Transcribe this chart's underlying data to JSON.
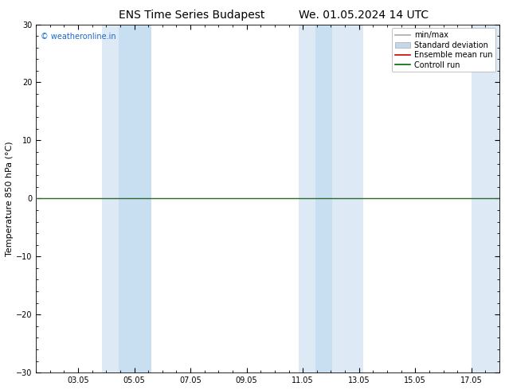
{
  "title_left": "ENS Time Series Budapest",
  "title_right": "We. 01.05.2024 14 UTC",
  "ylabel": "Temperature 850 hPa (°C)",
  "watermark": "© weatheronline.in",
  "watermark_color": "#1a6acc",
  "ylim": [
    -30,
    30
  ],
  "yticks": [
    -30,
    -20,
    -10,
    0,
    10,
    20,
    30
  ],
  "xtick_labels": [
    "03.05",
    "05.05",
    "07.05",
    "09.05",
    "11.05",
    "13.05",
    "15.05",
    "17.05"
  ],
  "xtick_positions": [
    3,
    5,
    7,
    9,
    11,
    13,
    15,
    17
  ],
  "xlim": [
    1.5,
    18.0
  ],
  "shaded_bands": [
    {
      "x_start": 3.85,
      "x_end": 4.45,
      "color": "#ddeaf6"
    },
    {
      "x_start": 4.45,
      "x_end": 5.6,
      "color": "#c8dff2"
    },
    {
      "x_start": 10.85,
      "x_end": 11.45,
      "color": "#ddeaf6"
    },
    {
      "x_start": 11.45,
      "x_end": 12.05,
      "color": "#c8dff2"
    },
    {
      "x_start": 12.05,
      "x_end": 13.15,
      "color": "#ddeaf6"
    },
    {
      "x_start": 17.0,
      "x_end": 18.0,
      "color": "#ddeaf6"
    }
  ],
  "zero_line_color": "#2d6a2d",
  "background_color": "#ffffff",
  "plot_bg_color": "#ffffff",
  "legend_items": [
    {
      "label": "min/max",
      "color": "#aaaaaa",
      "lw": 1.2
    },
    {
      "label": "Standard deviation",
      "color": "#c5d8ea",
      "lw": 5
    },
    {
      "label": "Ensemble mean run",
      "color": "#cc0000",
      "lw": 1.2
    },
    {
      "label": "Controll run",
      "color": "#006600",
      "lw": 1.2
    }
  ],
  "title_fontsize": 10,
  "axis_label_fontsize": 8,
  "tick_fontsize": 7,
  "legend_fontsize": 7,
  "watermark_fontsize": 7
}
